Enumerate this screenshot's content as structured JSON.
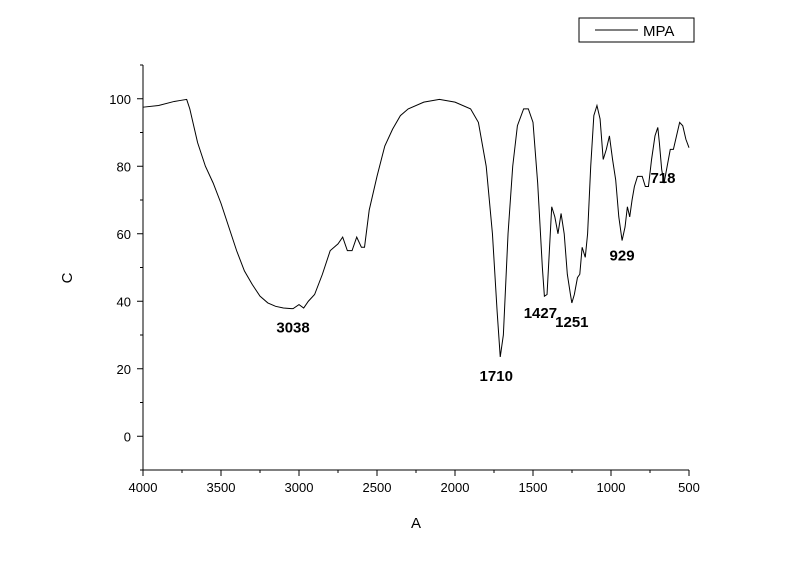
{
  "chart_data": {
    "type": "line",
    "xlabel": "A",
    "ylabel": "C",
    "xlim": [
      4000,
      500
    ],
    "ylim": [
      -10,
      110
    ],
    "x_reversed": true,
    "x_ticks": [
      4000,
      3500,
      3000,
      2500,
      2000,
      1500,
      1000,
      500
    ],
    "y_ticks": [
      0,
      20,
      40,
      60,
      80,
      100
    ],
    "grid": false,
    "legend_position": "top-right",
    "series": [
      {
        "name": "MPA",
        "color": "#000000",
        "points": [
          [
            4000,
            97.5
          ],
          [
            3900,
            98
          ],
          [
            3800,
            99.2
          ],
          [
            3760,
            99.5
          ],
          [
            3720,
            99.8
          ],
          [
            3700,
            97
          ],
          [
            3650,
            87
          ],
          [
            3600,
            80
          ],
          [
            3550,
            75
          ],
          [
            3500,
            69
          ],
          [
            3450,
            62
          ],
          [
            3400,
            55
          ],
          [
            3350,
            49
          ],
          [
            3300,
            45
          ],
          [
            3250,
            41.5
          ],
          [
            3200,
            39.5
          ],
          [
            3150,
            38.5
          ],
          [
            3100,
            38
          ],
          [
            3050,
            37.8
          ],
          [
            3038,
            37.8
          ],
          [
            3000,
            39
          ],
          [
            2970,
            38
          ],
          [
            2940,
            40
          ],
          [
            2900,
            42
          ],
          [
            2850,
            48
          ],
          [
            2800,
            55
          ],
          [
            2750,
            57
          ],
          [
            2720,
            59
          ],
          [
            2690,
            55
          ],
          [
            2660,
            55
          ],
          [
            2630,
            59
          ],
          [
            2600,
            56
          ],
          [
            2580,
            56
          ],
          [
            2550,
            67
          ],
          [
            2500,
            77
          ],
          [
            2450,
            86
          ],
          [
            2400,
            91
          ],
          [
            2350,
            95
          ],
          [
            2300,
            97
          ],
          [
            2200,
            99
          ],
          [
            2100,
            99.8
          ],
          [
            2000,
            99
          ],
          [
            1900,
            97
          ],
          [
            1850,
            93
          ],
          [
            1800,
            80
          ],
          [
            1760,
            60
          ],
          [
            1730,
            37
          ],
          [
            1710,
            23.5
          ],
          [
            1690,
            30
          ],
          [
            1660,
            60
          ],
          [
            1630,
            80
          ],
          [
            1600,
            92
          ],
          [
            1560,
            97
          ],
          [
            1530,
            97
          ],
          [
            1500,
            93
          ],
          [
            1470,
            75
          ],
          [
            1440,
            50
          ],
          [
            1427,
            41.5
          ],
          [
            1410,
            42
          ],
          [
            1395,
            55
          ],
          [
            1380,
            68
          ],
          [
            1360,
            65
          ],
          [
            1340,
            60
          ],
          [
            1320,
            66
          ],
          [
            1300,
            60
          ],
          [
            1280,
            48
          ],
          [
            1260,
            42
          ],
          [
            1251,
            39.5
          ],
          [
            1235,
            42
          ],
          [
            1215,
            47
          ],
          [
            1200,
            48
          ],
          [
            1185,
            56
          ],
          [
            1165,
            53
          ],
          [
            1150,
            60
          ],
          [
            1130,
            80
          ],
          [
            1110,
            95
          ],
          [
            1090,
            98
          ],
          [
            1070,
            94
          ],
          [
            1050,
            82
          ],
          [
            1030,
            85
          ],
          [
            1010,
            89
          ],
          [
            990,
            82
          ],
          [
            970,
            76
          ],
          [
            950,
            65
          ],
          [
            929,
            58
          ],
          [
            910,
            62
          ],
          [
            895,
            68
          ],
          [
            880,
            65
          ],
          [
            865,
            70
          ],
          [
            850,
            74
          ],
          [
            830,
            77
          ],
          [
            800,
            77
          ],
          [
            780,
            74
          ],
          [
            760,
            74
          ],
          [
            740,
            82
          ],
          [
            718,
            89
          ],
          [
            700,
            91.5
          ],
          [
            690,
            87
          ],
          [
            675,
            79
          ],
          [
            660,
            75
          ],
          [
            640,
            80
          ],
          [
            620,
            85
          ],
          [
            600,
            85
          ],
          [
            580,
            89
          ],
          [
            560,
            93
          ],
          [
            540,
            92
          ],
          [
            520,
            88
          ],
          [
            500,
            85.5
          ]
        ]
      }
    ],
    "annotations": [
      {
        "text": "3038",
        "x": 3038,
        "y": 37.8
      },
      {
        "text": "1710",
        "x": 1710,
        "y": 23.5
      },
      {
        "text": "1427",
        "x": 1427,
        "y": 41.5
      },
      {
        "text": "1251",
        "x": 1251,
        "y": 39.5
      },
      {
        "text": "929",
        "x": 929,
        "y": 58
      },
      {
        "text": "718",
        "x": 718,
        "y": 75
      }
    ]
  }
}
